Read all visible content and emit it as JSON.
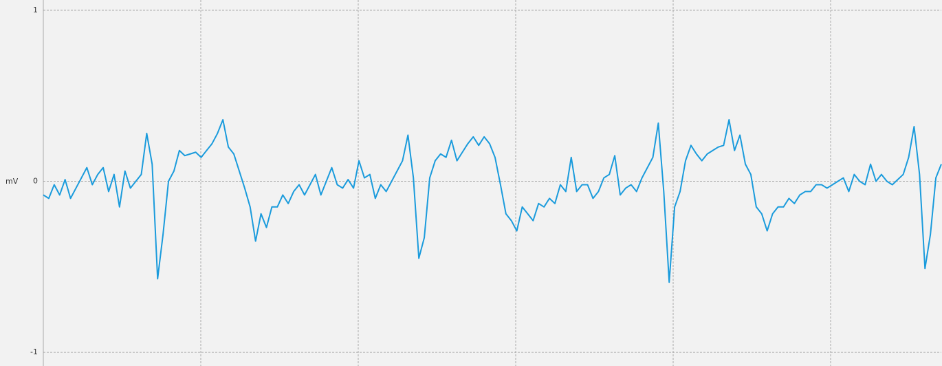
{
  "chart_data": {
    "type": "line",
    "ylabel": "mV",
    "ylim": [
      -1.08,
      1.06
    ],
    "yticks": [
      1,
      0,
      -1
    ],
    "grid": true,
    "series": [
      {
        "color": "#1a9bdc",
        "values": [
          -0.08,
          -0.1,
          -0.02,
          -0.08,
          0.01,
          -0.1,
          -0.04,
          0.02,
          0.08,
          -0.02,
          0.04,
          0.08,
          -0.06,
          0.04,
          -0.15,
          0.06,
          -0.04,
          0.0,
          0.04,
          0.28,
          0.1,
          -0.57,
          -0.31,
          0.0,
          0.06,
          0.18,
          0.15,
          0.16,
          0.17,
          0.14,
          0.18,
          0.22,
          0.28,
          0.36,
          0.2,
          0.16,
          0.06,
          -0.04,
          -0.15,
          -0.35,
          -0.19,
          -0.27,
          -0.15,
          -0.15,
          -0.08,
          -0.13,
          -0.06,
          -0.02,
          -0.08,
          -0.02,
          0.04,
          -0.08,
          0.0,
          0.08,
          -0.02,
          -0.04,
          0.01,
          -0.04,
          0.12,
          0.02,
          0.04,
          -0.1,
          -0.02,
          -0.06,
          0.0,
          0.06,
          0.12,
          0.27,
          0.02,
          -0.45,
          -0.33,
          0.02,
          0.12,
          0.16,
          0.14,
          0.24,
          0.12,
          0.17,
          0.22,
          0.26,
          0.21,
          0.26,
          0.22,
          0.14,
          -0.02,
          -0.19,
          -0.23,
          -0.29,
          -0.15,
          -0.19,
          -0.23,
          -0.13,
          -0.15,
          -0.1,
          -0.13,
          -0.02,
          -0.06,
          0.14,
          -0.06,
          -0.02,
          -0.02,
          -0.1,
          -0.06,
          0.02,
          0.04,
          0.15,
          -0.08,
          -0.04,
          -0.02,
          -0.06,
          0.02,
          0.08,
          0.14,
          0.34,
          -0.06,
          -0.59,
          -0.15,
          -0.06,
          0.12,
          0.21,
          0.16,
          0.12,
          0.16,
          0.18,
          0.2,
          0.21,
          0.36,
          0.18,
          0.27,
          0.1,
          0.04,
          -0.15,
          -0.19,
          -0.29,
          -0.19,
          -0.15,
          -0.15,
          -0.1,
          -0.13,
          -0.08,
          -0.06,
          -0.06,
          -0.02,
          -0.02,
          -0.04,
          -0.02,
          0.0,
          0.02,
          -0.06,
          0.04,
          0.0,
          -0.02,
          0.1,
          0.0,
          0.04,
          0.0,
          -0.02,
          0.01,
          0.04,
          0.14,
          0.32,
          0.04,
          -0.51,
          -0.31,
          0.02,
          0.1
        ]
      }
    ]
  }
}
